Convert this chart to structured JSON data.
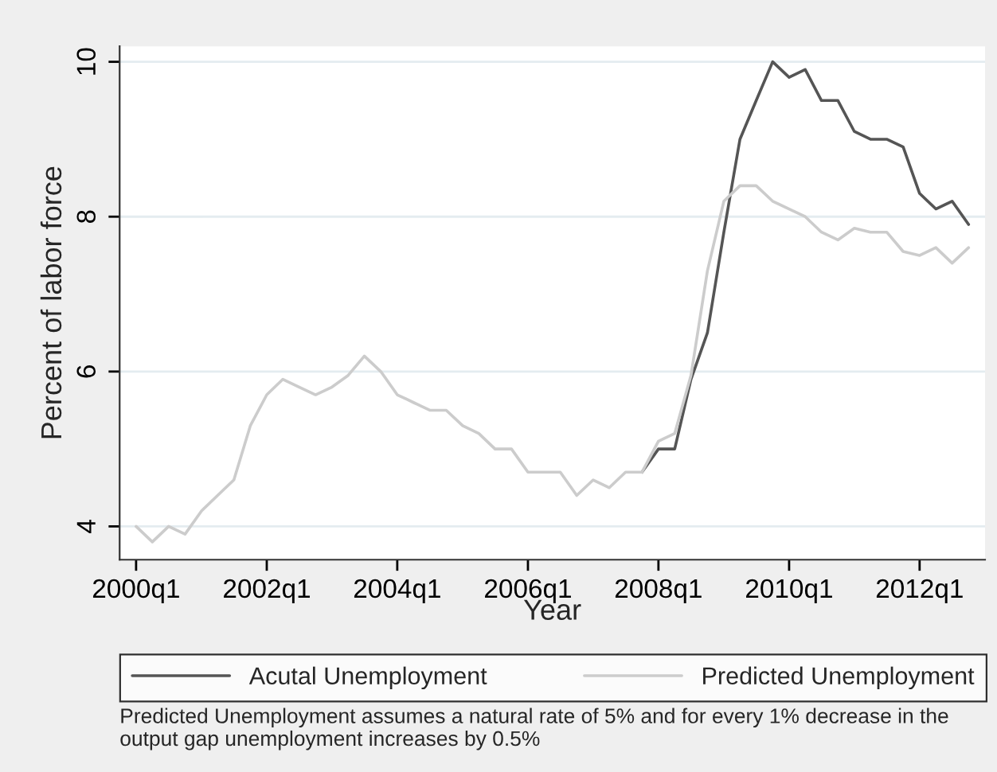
{
  "chart_data": {
    "type": "line",
    "xlabel": "Year",
    "ylabel": "Percent of labor force",
    "annotations": [
      "Predicted Unemployment assumes a natural rate of 5% and for every 1% decrease in the output gap unemployment increases by 0.5%"
    ],
    "x": [
      "2000-01",
      "2000-04",
      "2000-07",
      "2000-10",
      "2001-01",
      "2001-04",
      "2001-07",
      "2001-10",
      "2002-01",
      "2002-04",
      "2002-07",
      "2002-10",
      "2003-01",
      "2003-04",
      "2003-07",
      "2003-10",
      "2004-01",
      "2004-04",
      "2004-07",
      "2004-10",
      "2005-01",
      "2005-04",
      "2005-07",
      "2005-10",
      "2006-01",
      "2006-04",
      "2006-07",
      "2006-10",
      "2007-01",
      "2007-04",
      "2007-07",
      "2007-10",
      "2008-01",
      "2008-04",
      "2008-07",
      "2008-10",
      "2009-01",
      "2009-04",
      "2009-07",
      "2009-10",
      "2010-01",
      "2010-04",
      "2010-07",
      "2010-10",
      "2011-01",
      "2011-04",
      "2011-07",
      "2011-10",
      "2012-01",
      "2012-04",
      "2012-07",
      "2012-10"
    ],
    "series": [
      {
        "name": "Acutal Unemployment",
        "color": "#555555",
        "values": [
          null,
          null,
          null,
          null,
          null,
          null,
          null,
          null,
          null,
          null,
          null,
          null,
          null,
          null,
          null,
          null,
          null,
          null,
          null,
          null,
          null,
          null,
          null,
          null,
          null,
          null,
          null,
          null,
          null,
          null,
          null,
          4.7,
          5.0,
          5.0,
          5.9,
          6.5,
          7.8,
          9.0,
          9.5,
          10.0,
          9.8,
          9.9,
          9.5,
          9.5,
          9.1,
          9.0,
          9.0,
          8.9,
          8.3,
          8.1,
          8.2,
          7.9
        ]
      },
      {
        "name": "Predicted Unemployment",
        "color": "#cccccc",
        "values": [
          4.0,
          3.8,
          4.0,
          3.9,
          4.2,
          4.4,
          4.6,
          5.3,
          5.7,
          5.9,
          5.8,
          5.7,
          5.8,
          5.95,
          6.2,
          6.0,
          5.7,
          5.6,
          5.5,
          5.5,
          5.3,
          5.2,
          5.0,
          5.0,
          4.7,
          4.7,
          4.7,
          4.4,
          4.6,
          4.5,
          4.7,
          4.7,
          5.1,
          5.2,
          5.95,
          7.3,
          8.2,
          8.4,
          8.4,
          8.2,
          8.1,
          8.0,
          7.8,
          7.7,
          7.85,
          7.8,
          7.8,
          7.55,
          7.5,
          7.6,
          7.4,
          7.6
        ]
      }
    ],
    "xlim": [
      "1999-10",
      "2013-01"
    ],
    "xticks": [
      {
        "value": "2000-01",
        "label": "2000q1"
      },
      {
        "value": "2002-01",
        "label": "2002q1"
      },
      {
        "value": "2004-01",
        "label": "2004q1"
      },
      {
        "value": "2006-01",
        "label": "2006q1"
      },
      {
        "value": "2008-01",
        "label": "2008q1"
      },
      {
        "value": "2010-01",
        "label": "2010q1"
      },
      {
        "value": "2012-01",
        "label": "2012q1"
      }
    ],
    "ylim": [
      3.57,
      10.2
    ],
    "yticks": [
      4,
      6,
      8,
      10
    ],
    "grid": "y",
    "legend": "bottom",
    "marker": "none",
    "line_style": "solid"
  }
}
